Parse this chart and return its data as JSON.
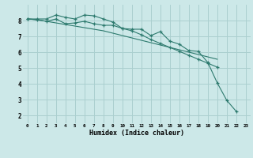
{
  "xlabel": "Humidex (Indice chaleur)",
  "background_color": "#cce8e8",
  "grid_color": "#aacfcf",
  "line_color": "#2d7a6e",
  "xlim": [
    -0.5,
    23.5
  ],
  "ylim": [
    1.5,
    9.0
  ],
  "yticks": [
    2,
    3,
    4,
    5,
    6,
    7,
    8
  ],
  "xticks": [
    0,
    1,
    2,
    3,
    4,
    5,
    6,
    7,
    8,
    9,
    10,
    11,
    12,
    13,
    14,
    15,
    16,
    17,
    18,
    19,
    20,
    21,
    22,
    23
  ],
  "line1_x": [
    0,
    1,
    2,
    3,
    4,
    5,
    6,
    7,
    8,
    9,
    10,
    11,
    12,
    13,
    14,
    15,
    16,
    17,
    18,
    19,
    20,
    21,
    22
  ],
  "line1_y": [
    8.1,
    8.1,
    8.1,
    8.35,
    8.2,
    8.1,
    8.35,
    8.3,
    8.1,
    7.9,
    7.5,
    7.45,
    7.45,
    7.05,
    7.3,
    6.7,
    6.5,
    6.1,
    6.05,
    5.35,
    4.05,
    2.95,
    2.25
  ],
  "line2_x": [
    0,
    1,
    2,
    3,
    4,
    5,
    6,
    7,
    8,
    9,
    10,
    11,
    12,
    13,
    14,
    15,
    16,
    17,
    18,
    19,
    20
  ],
  "line2_y": [
    8.1,
    8.05,
    7.95,
    8.1,
    7.8,
    7.85,
    7.95,
    7.8,
    7.7,
    7.7,
    7.5,
    7.35,
    7.1,
    6.8,
    6.55,
    6.3,
    6.05,
    5.8,
    5.55,
    5.3,
    5.05
  ],
  "line3_x": [
    0,
    1,
    2,
    3,
    4,
    5,
    6,
    7,
    8,
    9,
    10,
    11,
    12,
    13,
    14,
    15,
    16,
    17,
    18,
    19,
    20
  ],
  "line3_y": [
    8.1,
    8.05,
    7.95,
    7.85,
    7.75,
    7.65,
    7.55,
    7.45,
    7.35,
    7.2,
    7.05,
    6.9,
    6.75,
    6.6,
    6.45,
    6.3,
    6.15,
    6.0,
    5.85,
    5.7,
    5.55
  ]
}
